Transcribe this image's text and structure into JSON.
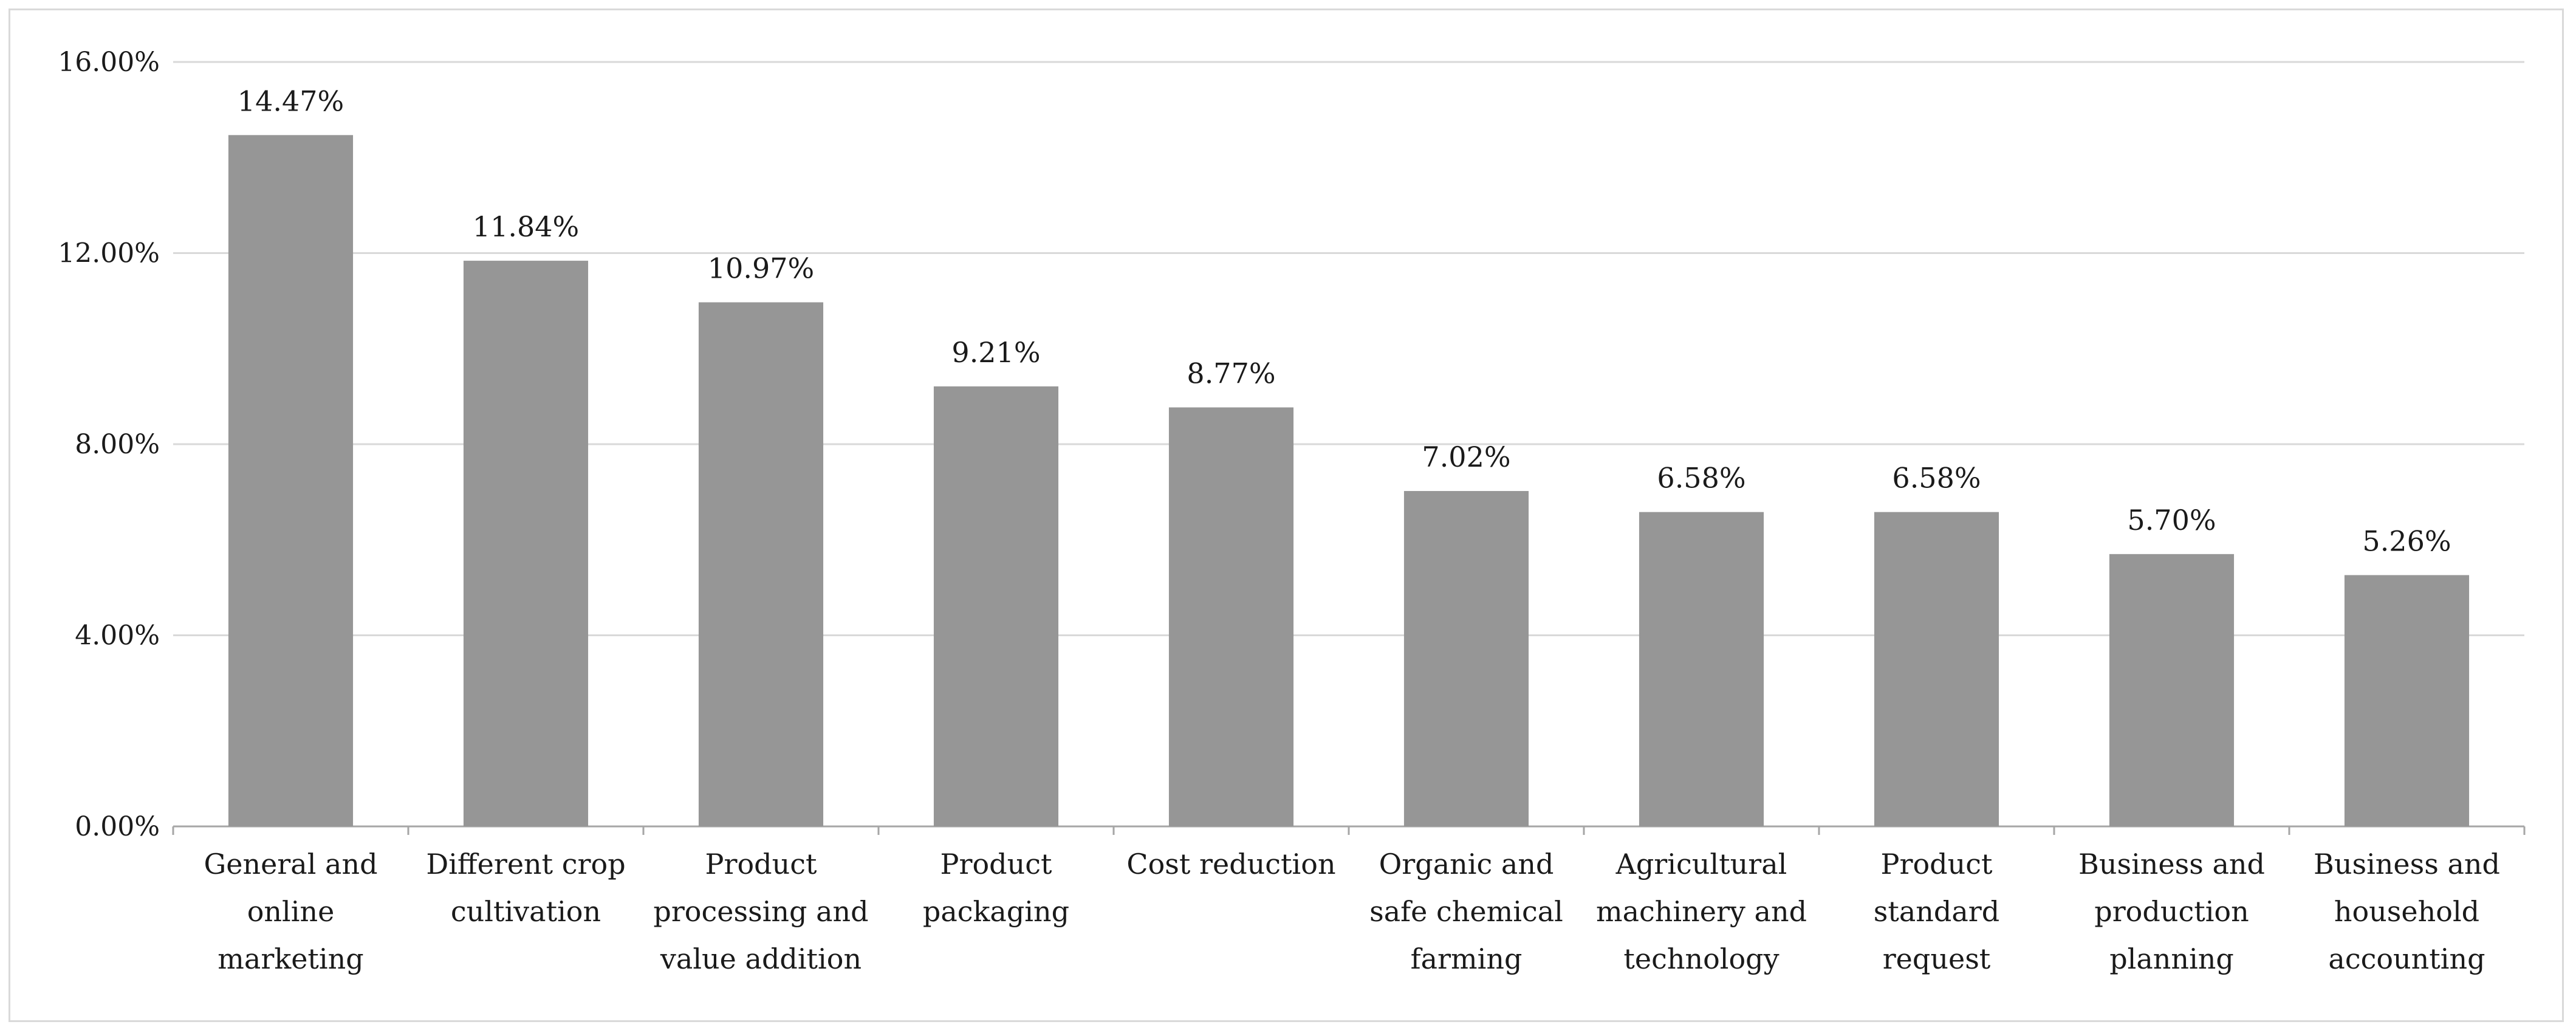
{
  "chart_data": {
    "type": "bar",
    "title": "",
    "xlabel": "",
    "ylabel": "",
    "ylim": [
      0,
      16
    ],
    "yticks": [
      0,
      4,
      8,
      12,
      16
    ],
    "ytick_labels": [
      "0.00%",
      "4.00%",
      "8.00%",
      "12.00%",
      "16.00%"
    ],
    "grid": "horizontal",
    "categories": [
      [
        "General and",
        "online",
        "marketing"
      ],
      [
        "Different crop",
        "cultivation"
      ],
      [
        "Product",
        "processing and",
        "value addition"
      ],
      [
        "Product",
        "packaging"
      ],
      [
        "Cost reduction"
      ],
      [
        "Organic and",
        "safe chemical",
        "farming"
      ],
      [
        "Agricultural",
        "machinery and",
        "technology"
      ],
      [
        "Product",
        "standard",
        "request"
      ],
      [
        "Business and",
        "production",
        "planning"
      ],
      [
        "Business and",
        "household",
        "accounting"
      ]
    ],
    "values": [
      14.47,
      11.84,
      10.97,
      9.21,
      8.77,
      7.02,
      6.58,
      6.58,
      5.7,
      5.26
    ],
    "value_labels": [
      "14.47%",
      "11.84%",
      "10.97%",
      "9.21%",
      "8.77%",
      "7.02%",
      "6.58%",
      "6.58%",
      "5.70%",
      "5.26%"
    ],
    "colors": {
      "bar": "#969696",
      "grid": "#d9d9d9",
      "axis": "#a6a6a6"
    }
  }
}
